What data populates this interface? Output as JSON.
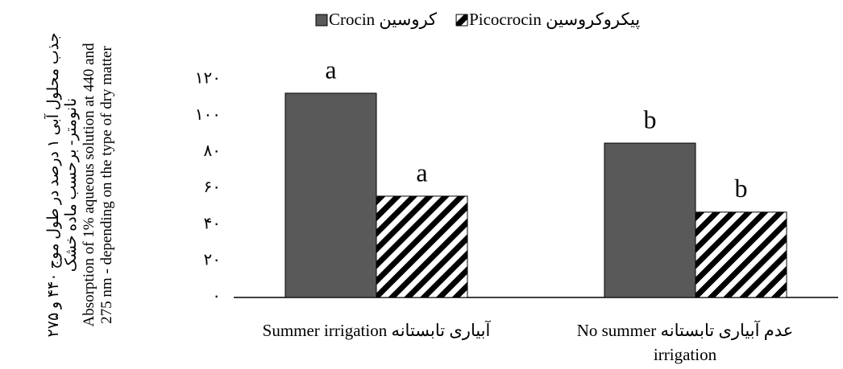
{
  "chart_data": {
    "type": "bar",
    "y_label": {
      "fa": "جذب محلول آبی ۱ درصد در طول موج ۴۴۰ و ۲۷۵ نانومتر- برحسب ماده خشک",
      "en": "Absorption of 1% aqueous solution at 440 and 275 nm - depending on the type of dry matter"
    },
    "categories": [
      "Summer irrigation آبیاری تابستانه",
      "عدم آبیاری تابستانه No summer irrigation"
    ],
    "series": [
      {
        "name": "Crocin کروسین",
        "color": "#595959",
        "values": [
          112.5,
          85
        ],
        "annotations": [
          "a",
          "b"
        ]
      },
      {
        "name": "Picocrocin پیکروکروسین",
        "color": "#000000",
        "pattern": "hatch",
        "values": [
          55.8,
          47
        ],
        "annotations": [
          "a",
          "b"
        ]
      }
    ],
    "ylim": [
      0,
      120
    ],
    "yticks": [
      {
        "value": 0,
        "label": "۰"
      },
      {
        "value": 20,
        "label": "۲۰"
      },
      {
        "value": 40,
        "label": "۴۰"
      },
      {
        "value": 60,
        "label": "۶۰"
      },
      {
        "value": 80,
        "label": "۸۰"
      },
      {
        "value": 100,
        "label": "۱۰۰"
      },
      {
        "value": 120,
        "label": "۱۲۰"
      }
    ],
    "grid": false,
    "legend": "top"
  }
}
